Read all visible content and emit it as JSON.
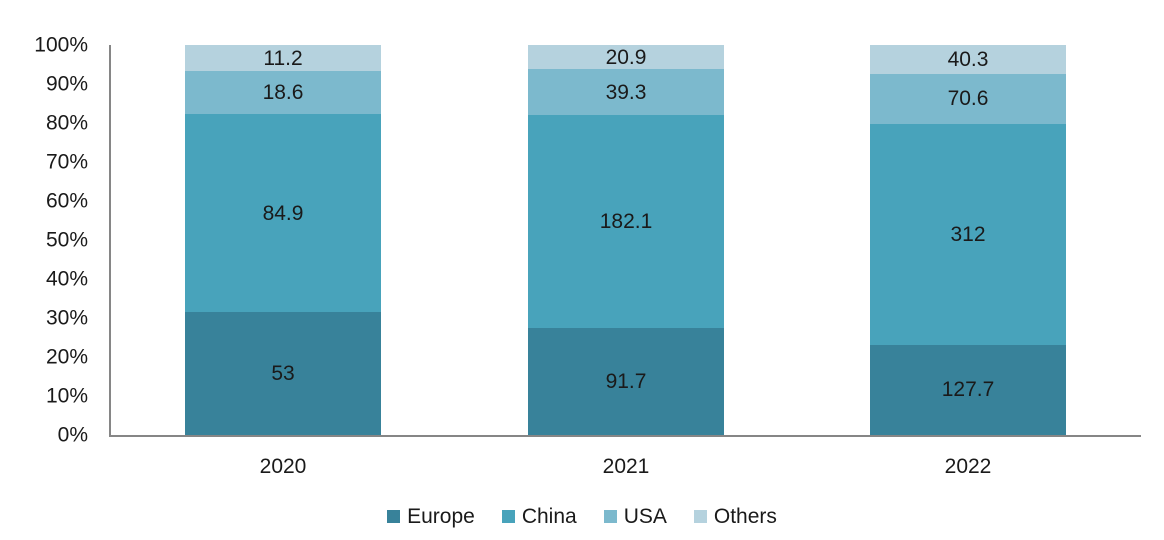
{
  "chart_data": {
    "type": "bar",
    "subtype": "stacked-100-percent",
    "title": "",
    "xlabel": "",
    "ylabel": "",
    "categories": [
      "2020",
      "2021",
      "2022"
    ],
    "series": [
      {
        "name": "Europe",
        "color": "#38829a",
        "values": [
          53,
          91.7,
          127.7
        ]
      },
      {
        "name": "China",
        "color": "#48a3bb",
        "values": [
          84.9,
          182.1,
          312
        ]
      },
      {
        "name": "USA",
        "color": "#7cb9cd",
        "values": [
          18.6,
          39.3,
          70.6
        ]
      },
      {
        "name": "Others",
        "color": "#b5d2de",
        "values": [
          11.2,
          20.9,
          40.3
        ]
      }
    ],
    "data_labels": {
      "shown": true,
      "values_as_displayed": [
        [
          "53",
          "84.9",
          "18.6",
          "11.2"
        ],
        [
          "91.7",
          "182.1",
          "39.3",
          "20.9"
        ],
        [
          "127.7",
          "312",
          "70.6",
          "40.3"
        ]
      ]
    },
    "y_axis": {
      "min": 0,
      "max": 100,
      "unit": "%",
      "ticks": [
        "0%",
        "10%",
        "20%",
        "30%",
        "40%",
        "50%",
        "60%",
        "70%",
        "80%",
        "90%",
        "100%"
      ]
    },
    "legend": {
      "position": "bottom",
      "entries": [
        "Europe",
        "China",
        "USA",
        "Others"
      ]
    },
    "grid": false,
    "colors": {
      "axis_line": "#868686",
      "text": "#1a1a1a",
      "background": "#ffffff"
    }
  }
}
